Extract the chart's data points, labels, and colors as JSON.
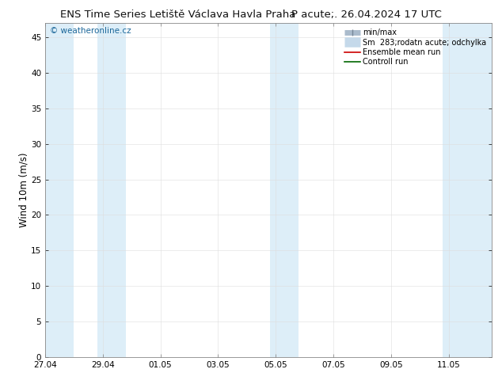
{
  "title_left": "ENS Time Series Letiště Václava Havla Praha",
  "title_right": "P acute;. 26.04.2024 17 UTC",
  "ylabel": "Wind 10m (m/s)",
  "watermark": "© weatheronline.cz",
  "ylim": [
    0,
    47
  ],
  "yticks": [
    0,
    5,
    10,
    15,
    20,
    25,
    30,
    35,
    40,
    45
  ],
  "xtick_labels": [
    "27.04",
    "29.04",
    "01.05",
    "03.05",
    "05.05",
    "07.05",
    "09.05",
    "11.05"
  ],
  "xtick_positions": [
    0,
    2,
    4,
    6,
    8,
    10,
    12,
    14
  ],
  "total_days": 16,
  "xmin": 0,
  "xmax": 15.5,
  "shaded_bands": [
    {
      "xmin": 0.0,
      "xmax": 1.0
    },
    {
      "xmin": 1.8,
      "xmax": 2.8
    },
    {
      "xmin": 7.8,
      "xmax": 8.8
    },
    {
      "xmin": 13.8,
      "xmax": 15.5
    }
  ],
  "band_color": "#ddeef8",
  "background_color": "#ffffff",
  "grid_color": "#dddddd",
  "title_fontsize": 9.5,
  "tick_fontsize": 7.5,
  "ylabel_fontsize": 8.5,
  "watermark_color": "#1a6699",
  "watermark_fontsize": 7.5,
  "legend_labels": [
    "min/max",
    "Sm  283;rodatn acute; odchylka",
    "Ensemble mean run",
    "Controll run"
  ],
  "legend_colors": [
    "#aabbcc",
    "#c5d9ea",
    "#cc0000",
    "#006600"
  ],
  "legend_lw": [
    5,
    9,
    1.2,
    1.2
  ]
}
